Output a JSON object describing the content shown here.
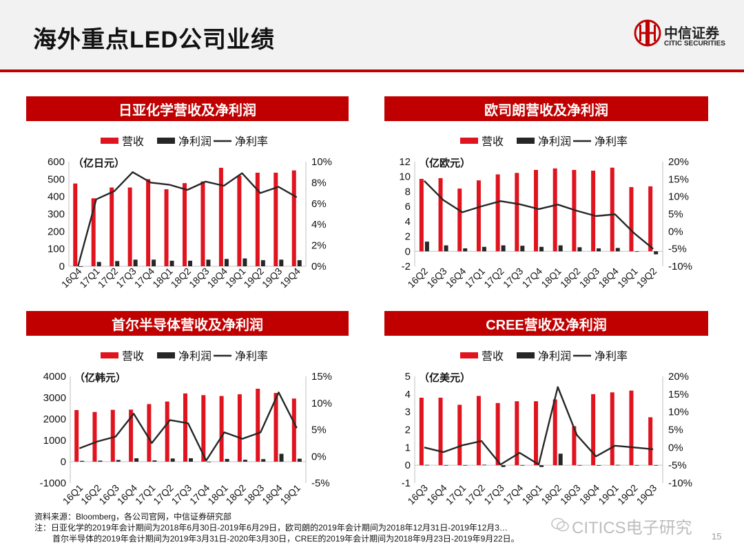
{
  "page": {
    "title": "海外重点LED公司业绩",
    "logo_cn": "中信证券",
    "logo_en": "CITIC SECURITIES",
    "footer_source": "资料来源：Bloomberg，各公司官网，中信证券研究部",
    "footer_note1": "注：日亚化学的2019年会计期间为2018年6月30日-2019年6月29日，欧司朗的2019年会计期间为2018年12月31日-2019年12月3…",
    "footer_note2": "首尔半导体的2019年会计期间为2019年3月31日-2020年3月30日，CREE的2019年会计期间为2018年9月23日-2019年9月22日。",
    "watermark": "CITICS电子研究",
    "page_number": "15",
    "colors": {
      "accent": "#c00000",
      "revenue": "#e0141e",
      "profit": "#262626",
      "margin": "#262626"
    }
  },
  "chart_data": [
    {
      "type": "bar",
      "title": "日亚化学营收及净利润",
      "unit_label": "（亿日元）",
      "legend": [
        "营收",
        "净利润",
        "净利率"
      ],
      "categories": [
        "16Q4",
        "17Q1",
        "17Q2",
        "17Q3",
        "17Q4",
        "18Q1",
        "18Q2",
        "18Q3",
        "18Q4",
        "19Q1",
        "19Q2",
        "19Q3",
        "19Q4"
      ],
      "series": [
        {
          "name": "营收",
          "axis": "left",
          "kind": "bar",
          "values": [
            475,
            390,
            452,
            452,
            500,
            442,
            477,
            487,
            565,
            520,
            537,
            537,
            550
          ]
        },
        {
          "name": "净利润",
          "axis": "left",
          "kind": "bar",
          "values": [
            0,
            25,
            30,
            38,
            38,
            32,
            32,
            38,
            42,
            45,
            35,
            38,
            35
          ]
        },
        {
          "name": "净利率",
          "axis": "right",
          "kind": "line",
          "values": [
            0,
            6.4,
            7.2,
            9.0,
            8.0,
            7.8,
            7.3,
            8.1,
            7.7,
            8.9,
            7.0,
            7.6,
            6.6
          ]
        }
      ],
      "left_axis": {
        "min": 0,
        "max": 600,
        "ticks": [
          0,
          100,
          200,
          300,
          400,
          500,
          600
        ],
        "labels": [
          "0",
          "100",
          "200",
          "300",
          "400",
          "500",
          "600"
        ]
      },
      "right_axis": {
        "min": 0,
        "max": 10,
        "ticks": [
          0,
          2,
          4,
          6,
          8,
          10
        ],
        "labels": [
          "0%",
          "2%",
          "4%",
          "6%",
          "8%",
          "10%"
        ]
      }
    },
    {
      "type": "bar",
      "title": "欧司朗营收及净利润",
      "unit_label": "（亿欧元）",
      "legend": [
        "营收",
        "净利润",
        "净利率"
      ],
      "categories": [
        "16Q2",
        "16Q3",
        "16Q4",
        "17Q1",
        "17Q2",
        "17Q3",
        "17Q4",
        "18Q1",
        "18Q2",
        "18Q3",
        "18Q4",
        "19Q1",
        "19Q2"
      ],
      "series": [
        {
          "name": "营收",
          "axis": "left",
          "kind": "bar",
          "values": [
            9.7,
            9.8,
            8.4,
            9.5,
            10.3,
            10.5,
            10.9,
            11.1,
            10.9,
            10.8,
            11.2,
            8.6,
            8.7
          ]
        },
        {
          "name": "净利润",
          "axis": "left",
          "kind": "bar",
          "values": [
            1.3,
            0.8,
            0.4,
            0.6,
            0.8,
            0.75,
            0.6,
            0.8,
            0.55,
            0.4,
            0.45,
            0.0,
            -0.4
          ]
        },
        {
          "name": "净利率",
          "axis": "right",
          "kind": "line",
          "values": [
            14.5,
            9.0,
            5.5,
            7.2,
            8.7,
            7.8,
            6.4,
            7.7,
            5.9,
            4.4,
            4.9,
            -0.5,
            -5.0
          ]
        }
      ],
      "left_axis": {
        "min": -2,
        "max": 12,
        "ticks": [
          -2,
          0,
          2,
          4,
          6,
          8,
          10,
          12
        ],
        "labels": [
          "-2",
          "0",
          "2",
          "4",
          "6",
          "8",
          "10",
          "12"
        ]
      },
      "right_axis": {
        "min": -10,
        "max": 20,
        "ticks": [
          -10,
          -5,
          0,
          5,
          10,
          15,
          20
        ],
        "labels": [
          "-10%",
          "-5%",
          "0%",
          "5%",
          "10%",
          "15%",
          "20%"
        ]
      }
    },
    {
      "type": "bar",
      "title": "首尔半导体营收及净利润",
      "unit_label": "（亿韩元）",
      "legend": [
        "营收",
        "净利润",
        "净利率"
      ],
      "categories": [
        "16Q1",
        "16Q2",
        "16Q3",
        "16Q4",
        "17Q1",
        "17Q2",
        "17Q3",
        "17Q4",
        "18Q1",
        "18Q2",
        "18Q3",
        "18Q4",
        "19Q1"
      ],
      "series": [
        {
          "name": "营收",
          "axis": "left",
          "kind": "bar",
          "values": [
            2420,
            2330,
            2430,
            2440,
            2700,
            2820,
            3200,
            3120,
            3080,
            3160,
            3420,
            3220,
            2960
          ]
        },
        {
          "name": "净利润",
          "axis": "left",
          "kind": "bar",
          "values": [
            40,
            50,
            80,
            160,
            60,
            150,
            160,
            -20,
            130,
            90,
            120,
            370,
            140
          ]
        },
        {
          "name": "净利率",
          "axis": "right",
          "kind": "line",
          "values": [
            1.5,
            2.8,
            3.7,
            8.0,
            2.5,
            6.8,
            6.2,
            -0.8,
            4.5,
            3.3,
            4.5,
            12.0,
            5.3
          ]
        }
      ],
      "left_axis": {
        "min": -1000,
        "max": 4000,
        "ticks": [
          -1000,
          0,
          1000,
          2000,
          3000,
          4000
        ],
        "labels": [
          "-1000",
          "0",
          "1000",
          "2000",
          "3000",
          "4000"
        ]
      },
      "right_axis": {
        "min": -5,
        "max": 15,
        "ticks": [
          -5,
          0,
          5,
          10,
          15
        ],
        "labels": [
          "-5%",
          "0%",
          "5%",
          "10%",
          "15%"
        ]
      }
    },
    {
      "type": "bar",
      "title": "CREE营收及净利润",
      "unit_label": "（亿美元）",
      "legend": [
        "营收",
        "净利润",
        "净利率"
      ],
      "categories": [
        "16Q3",
        "16Q4",
        "17Q1",
        "17Q2",
        "17Q3",
        "17Q4",
        "18Q1",
        "18Q2",
        "18Q3",
        "18Q4",
        "19Q1",
        "19Q2",
        "19Q3"
      ],
      "series": [
        {
          "name": "营收",
          "axis": "left",
          "kind": "bar",
          "values": [
            3.8,
            3.8,
            3.4,
            3.9,
            3.5,
            3.6,
            3.6,
            3.7,
            2.2,
            4.0,
            4.1,
            4.2,
            2.7
          ]
        },
        {
          "name": "净利润",
          "axis": "left",
          "kind": "bar",
          "values": [
            0.02,
            0.01,
            0.01,
            0.03,
            -0.1,
            0.01,
            -0.1,
            0.65,
            0.01,
            -0.03,
            0.02,
            0.01,
            0.01
          ]
        },
        {
          "name": "净利率",
          "axis": "right",
          "kind": "line",
          "values": [
            0,
            -1.3,
            0.6,
            1.8,
            -4.8,
            -1.5,
            -4.8,
            17.0,
            3.5,
            -2.5,
            0.5,
            0,
            -0.5
          ]
        }
      ],
      "left_axis": {
        "min": -1,
        "max": 5,
        "ticks": [
          -1,
          0,
          1,
          2,
          3,
          4,
          5
        ],
        "labels": [
          "-1",
          "0",
          "1",
          "2",
          "3",
          "4",
          "5"
        ]
      },
      "right_axis": {
        "min": -10,
        "max": 20,
        "ticks": [
          -10,
          -5,
          0,
          5,
          10,
          15,
          20
        ],
        "labels": [
          "-10%",
          "-5%",
          "0%",
          "5%",
          "10%",
          "15%",
          "20%"
        ]
      }
    }
  ]
}
